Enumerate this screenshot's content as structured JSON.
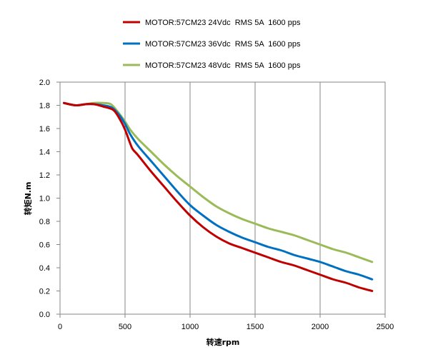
{
  "chart_data": {
    "type": "line",
    "xlabel": "转速rpm",
    "ylabel": "转矩N.m",
    "xlim": [
      0,
      2500
    ],
    "ylim": [
      0,
      2.0
    ],
    "x_ticks": [
      "0",
      "500",
      "1000",
      "1500",
      "2000",
      "2500"
    ],
    "y_ticks": [
      "0.0",
      "0.2",
      "0.4",
      "0.6",
      "0.8",
      "1.0",
      "1.2",
      "1.4",
      "1.6",
      "1.8",
      "2.0"
    ],
    "grid": "vertical",
    "legend_position": "top",
    "series": [
      {
        "name": "MOTOR:57CM23 24Vdc  RMS 5A  1600 pps",
        "color": "#C00000",
        "points": [
          [
            30,
            1.82
          ],
          [
            120,
            1.8
          ],
          [
            200,
            1.81
          ],
          [
            260,
            1.81
          ],
          [
            330,
            1.79
          ],
          [
            410,
            1.76
          ],
          [
            460,
            1.68
          ],
          [
            500,
            1.59
          ],
          [
            540,
            1.47
          ],
          [
            560,
            1.42
          ],
          [
            600,
            1.37
          ],
          [
            700,
            1.23
          ],
          [
            800,
            1.1
          ],
          [
            900,
            0.97
          ],
          [
            1000,
            0.85
          ],
          [
            1100,
            0.75
          ],
          [
            1200,
            0.67
          ],
          [
            1300,
            0.61
          ],
          [
            1400,
            0.57
          ],
          [
            1500,
            0.53
          ],
          [
            1600,
            0.49
          ],
          [
            1700,
            0.45
          ],
          [
            1800,
            0.42
          ],
          [
            1900,
            0.38
          ],
          [
            2000,
            0.34
          ],
          [
            2100,
            0.3
          ],
          [
            2200,
            0.27
          ],
          [
            2300,
            0.23
          ],
          [
            2400,
            0.2
          ]
        ]
      },
      {
        "name": "MOTOR:57CM23 36Vdc  RMS 5A  1600 pps",
        "color": "#0070C0",
        "points": [
          [
            30,
            1.82
          ],
          [
            120,
            1.8
          ],
          [
            200,
            1.81
          ],
          [
            260,
            1.81
          ],
          [
            330,
            1.8
          ],
          [
            400,
            1.78
          ],
          [
            460,
            1.71
          ],
          [
            500,
            1.64
          ],
          [
            540,
            1.55
          ],
          [
            600,
            1.45
          ],
          [
            700,
            1.32
          ],
          [
            800,
            1.19
          ],
          [
            900,
            1.06
          ],
          [
            1000,
            0.94
          ],
          [
            1100,
            0.85
          ],
          [
            1200,
            0.77
          ],
          [
            1300,
            0.71
          ],
          [
            1400,
            0.66
          ],
          [
            1500,
            0.62
          ],
          [
            1600,
            0.58
          ],
          [
            1700,
            0.55
          ],
          [
            1800,
            0.51
          ],
          [
            1900,
            0.48
          ],
          [
            2000,
            0.45
          ],
          [
            2100,
            0.41
          ],
          [
            2200,
            0.37
          ],
          [
            2300,
            0.34
          ],
          [
            2400,
            0.3
          ]
        ]
      },
      {
        "name": "MOTOR:57CM23 48Vdc  RMS 5A  1600 pps",
        "color": "#9BBB59",
        "points": [
          [
            30,
            1.82
          ],
          [
            120,
            1.8
          ],
          [
            200,
            1.81
          ],
          [
            260,
            1.82
          ],
          [
            330,
            1.82
          ],
          [
            390,
            1.81
          ],
          [
            440,
            1.75
          ],
          [
            500,
            1.66
          ],
          [
            540,
            1.59
          ],
          [
            600,
            1.51
          ],
          [
            700,
            1.4
          ],
          [
            800,
            1.29
          ],
          [
            900,
            1.19
          ],
          [
            1000,
            1.1
          ],
          [
            1100,
            1.01
          ],
          [
            1200,
            0.93
          ],
          [
            1300,
            0.87
          ],
          [
            1400,
            0.82
          ],
          [
            1500,
            0.78
          ],
          [
            1600,
            0.74
          ],
          [
            1700,
            0.71
          ],
          [
            1800,
            0.68
          ],
          [
            1900,
            0.64
          ],
          [
            2000,
            0.6
          ],
          [
            2100,
            0.56
          ],
          [
            2200,
            0.53
          ],
          [
            2300,
            0.49
          ],
          [
            2400,
            0.45
          ]
        ]
      }
    ]
  }
}
